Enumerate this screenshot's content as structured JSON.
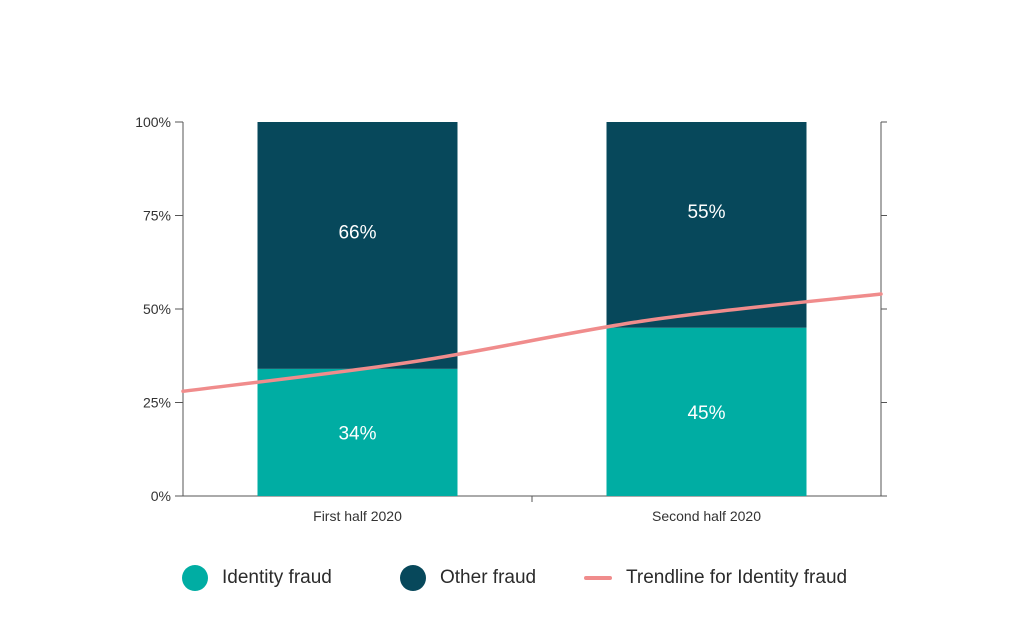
{
  "chart_data": {
    "type": "bar",
    "stacked": true,
    "categories": [
      "First half 2020",
      "Second half 2020"
    ],
    "series": [
      {
        "name": "Identity fraud",
        "values": [
          34,
          45
        ],
        "labels": [
          "34%",
          "45%"
        ],
        "color": "#00ada3"
      },
      {
        "name": "Other fraud",
        "values": [
          66,
          55
        ],
        "labels": [
          "66%",
          "55%"
        ],
        "color": "#07485b"
      }
    ],
    "trendline": {
      "name": "Trendline for Identity fraud",
      "color": "#f08c8c",
      "x": [
        0,
        1,
        2,
        3
      ],
      "y": [
        28,
        36,
        47,
        54
      ]
    },
    "ylim": [
      0,
      100
    ],
    "yticks": [
      0,
      25,
      50,
      75,
      100
    ],
    "ytick_labels": [
      "0%",
      "25%",
      "50%",
      "75%",
      "100%"
    ],
    "grid": false,
    "legend_position": "bottom"
  }
}
